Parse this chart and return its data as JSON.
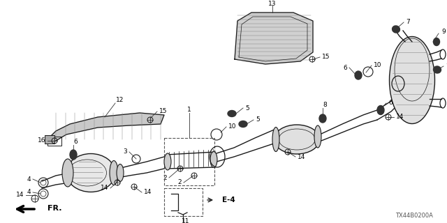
{
  "background": "#ffffff",
  "line_color": "#1a1a1a",
  "ref_code": "TX44B0200A"
}
